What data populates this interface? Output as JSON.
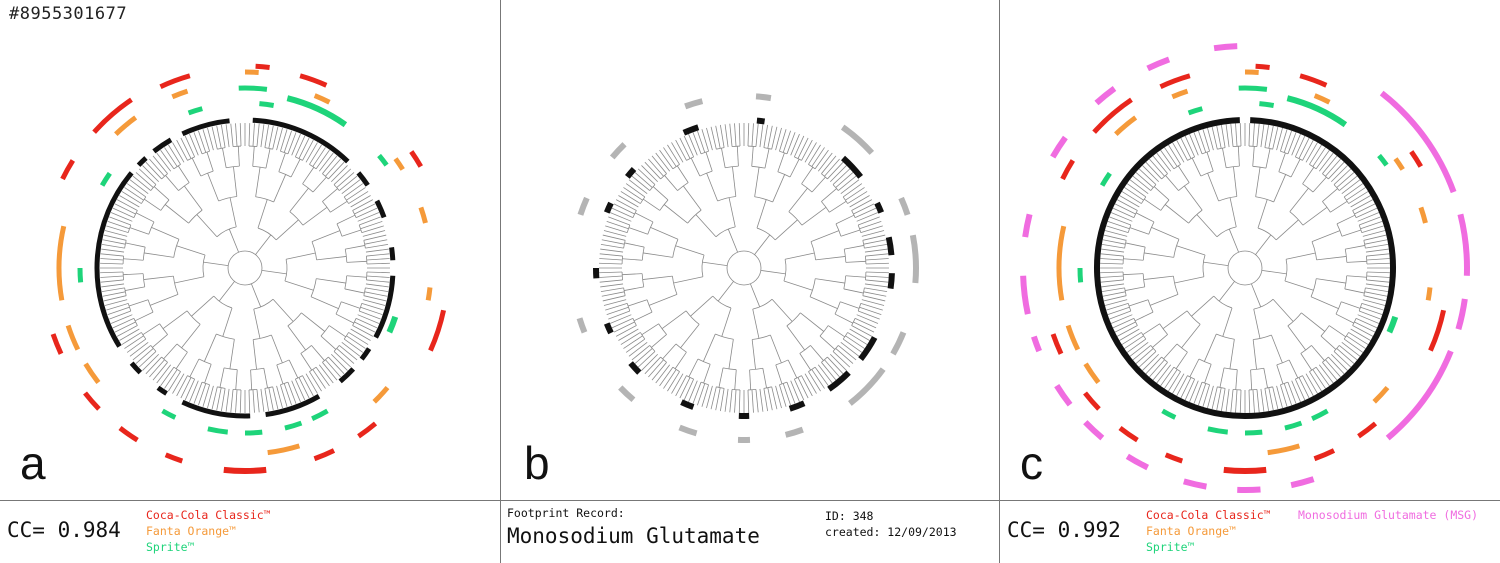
{
  "figure_id": "#8955301677",
  "panels": [
    {
      "letter": "a"
    },
    {
      "letter": "b"
    },
    {
      "letter": "c"
    }
  ],
  "footer": {
    "left": {
      "cc_label": "CC=",
      "cc_value": "0.984",
      "legend": [
        "Coca-Cola Classic™",
        "Fanta Orange™",
        "Sprite™"
      ]
    },
    "middle": {
      "heading": "Footprint Record:",
      "title": "Monosodium Glutamate",
      "id_text": "ID: 348",
      "created_text": "created: 12/09/2013"
    },
    "right": {
      "cc_label": "CC=",
      "cc_value": "0.992",
      "legend": [
        "Coca-Cola Classic™",
        "Fanta Orange™",
        "Sprite™",
        "Monosodium Glutamate (MSG)"
      ]
    }
  },
  "colors": {
    "coca_cola": "#e8261c",
    "fanta": "#f59a3a",
    "sprite": "#1ed47a",
    "msg": "#f06ce0",
    "record": "#111111",
    "record_outer": "#b4b4b4",
    "tree": "#8a8a8a"
  }
}
